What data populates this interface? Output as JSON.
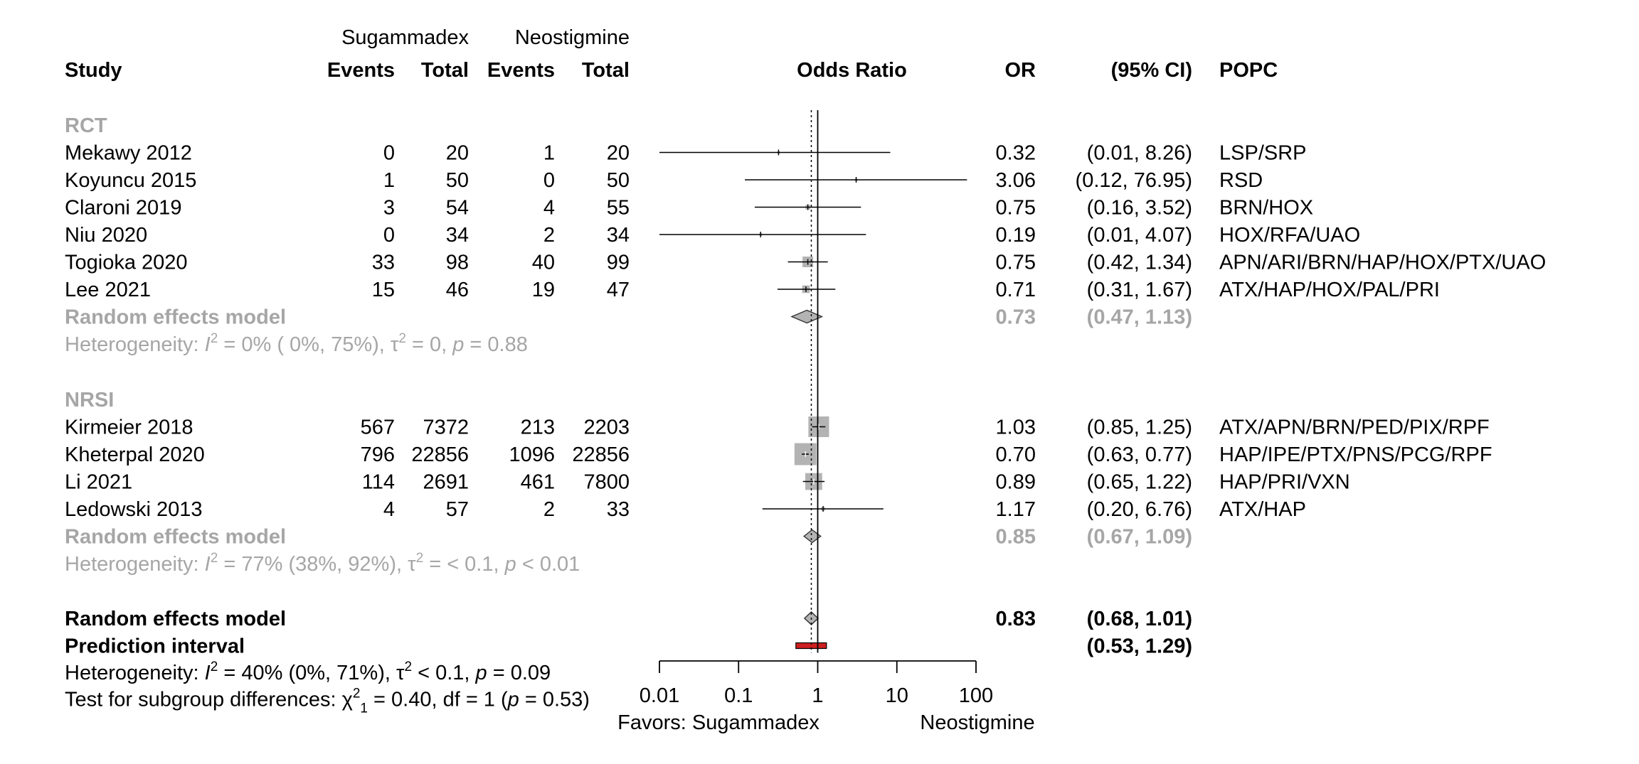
{
  "chart_data": {
    "type": "forest",
    "measure_label": "Odds Ratio",
    "scale": "log",
    "xlim": [
      0.01,
      100
    ],
    "xticks": [
      {
        "value": 0.01,
        "label": "0.01"
      },
      {
        "value": 0.1,
        "label": "0.1"
      },
      {
        "value": 1,
        "label": "1"
      },
      {
        "value": 10,
        "label": "10"
      },
      {
        "value": 100,
        "label": "100"
      }
    ],
    "favors_left": "Favors: Sugammadex",
    "favors_right": "Neostigmine",
    "overall_estimate": 0.83,
    "columns": {
      "group1": "Sugammadex",
      "group2": "Neostigmine",
      "study": "Study",
      "events": "Events",
      "total": "Total",
      "or": "OR",
      "ci": "(95% CI)",
      "popc": "POPC"
    },
    "subgroups": [
      {
        "name": "RCT",
        "studies": [
          {
            "study": "Mekawy 2012",
            "e1": "0",
            "n1": "20",
            "e2": "1",
            "n2": "20",
            "or": 0.32,
            "lo": 0.01,
            "hi": 8.26,
            "or_text": "0.32",
            "ci_text": "(0.01,  8.26)",
            "popc": "LSP/SRP",
            "weight": 0.5
          },
          {
            "study": "Koyuncu 2015",
            "e1": "1",
            "n1": "50",
            "e2": "0",
            "n2": "50",
            "or": 3.06,
            "lo": 0.12,
            "hi": 76.95,
            "or_text": "3.06",
            "ci_text": "(0.12, 76.95)",
            "popc": "RSD",
            "weight": 0.5
          },
          {
            "study": "Claroni 2019",
            "e1": "3",
            "n1": "54",
            "e2": "4",
            "n2": "55",
            "or": 0.75,
            "lo": 0.16,
            "hi": 3.52,
            "or_text": "0.75",
            "ci_text": "(0.16,  3.52)",
            "popc": "BRN/HOX",
            "weight": 1.5
          },
          {
            "study": "Niu 2020",
            "e1": "0",
            "n1": "34",
            "e2": "2",
            "n2": "34",
            "or": 0.19,
            "lo": 0.01,
            "hi": 4.07,
            "or_text": "0.19",
            "ci_text": "(0.01,  4.07)",
            "popc": "HOX/RFA/UAO",
            "weight": 0.5
          },
          {
            "study": "Togioka 2020",
            "e1": "33",
            "n1": "98",
            "e2": "40",
            "n2": "99",
            "or": 0.75,
            "lo": 0.42,
            "hi": 1.34,
            "or_text": "0.75",
            "ci_text": "(0.42,  1.34)",
            "popc": "APN/ARI/BRN/HAP/HOX/PTX/UAO",
            "weight": 8
          },
          {
            "study": "Lee 2021",
            "e1": "15",
            "n1": "46",
            "e2": "19",
            "n2": "47",
            "or": 0.71,
            "lo": 0.31,
            "hi": 1.67,
            "or_text": "0.71",
            "ci_text": "(0.31,  1.67)",
            "popc": "ATX/HAP/HOX/PAL/PRI",
            "weight": 4
          }
        ],
        "pooled": {
          "label": "Random effects model",
          "or": 0.73,
          "lo": 0.47,
          "hi": 1.13,
          "or_text": "0.73",
          "ci_text": "(0.47,  1.13)"
        },
        "het": {
          "prefix": "Heterogeneity: ",
          "i2": "I",
          "sq": "2",
          "rest1": " = 0% ( 0%, 75%), ",
          "tau": "τ",
          "rest2": " = 0, ",
          "p": "p",
          "rest3": " = 0.88"
        }
      },
      {
        "name": "NRSI",
        "studies": [
          {
            "study": "Kirmeier 2018",
            "e1": "567",
            "n1": "7372",
            "e2": "213",
            "n2": "2203",
            "or": 1.03,
            "lo": 0.85,
            "hi": 1.25,
            "or_text": "1.03",
            "ci_text": "(0.85,  1.25)",
            "popc": "ATX/APN/BRN/PED/PIX/RPF",
            "weight": 30
          },
          {
            "study": "Kheterpal 2020",
            "e1": "796",
            "n1": "22856",
            "e2": "1096",
            "n2": "22856",
            "or": 0.7,
            "lo": 0.63,
            "hi": 0.77,
            "or_text": "0.70",
            "ci_text": "(0.63,  0.77)",
            "popc": "HAP/IPE/PTX/PNS/PCG/RPF",
            "weight": 34
          },
          {
            "study": "Li 2021",
            "e1": "114",
            "n1": "2691",
            "e2": "461",
            "n2": "7800",
            "or": 0.89,
            "lo": 0.65,
            "hi": 1.22,
            "or_text": "0.89",
            "ci_text": "(0.65,  1.22)",
            "popc": "HAP/PRI/VXN",
            "weight": 20
          },
          {
            "study": "Ledowski 2013",
            "e1": "4",
            "n1": "57",
            "e2": "2",
            "n2": "33",
            "or": 1.17,
            "lo": 0.2,
            "hi": 6.76,
            "or_text": "1.17",
            "ci_text": "(0.20,  6.76)",
            "popc": "ATX/HAP",
            "weight": 1
          }
        ],
        "pooled": {
          "label": "Random effects model",
          "or": 0.85,
          "lo": 0.67,
          "hi": 1.09,
          "or_text": "0.85",
          "ci_text": "(0.67,  1.09)"
        },
        "het": {
          "prefix": "Heterogeneity: ",
          "i2": "I",
          "sq": "2",
          "rest1": " = 77% (38%, 92%), ",
          "tau": "τ",
          "rest2": " = < 0.1, ",
          "p": "p",
          "rest3": " < 0.01"
        }
      }
    ],
    "overall": {
      "label": "Random effects model",
      "or": 0.83,
      "lo": 0.68,
      "hi": 1.01,
      "or_text": "0.83",
      "ci_text": "(0.68,  1.01)"
    },
    "prediction": {
      "label": "Prediction interval",
      "lo": 0.53,
      "hi": 1.29,
      "ci_text": "(0.53,  1.29)"
    },
    "overall_het": {
      "prefix": "Heterogeneity: ",
      "i2": "I",
      "sq": "2",
      "rest1": " = 40% (0%, 71%), ",
      "tau": "τ",
      "rest2": " < 0.1, ",
      "p": "p",
      "rest3": " = 0.09"
    },
    "subgroup_test": {
      "prefix": "Test for subgroup differences: ",
      "chi": "χ",
      "sub": "1",
      "sq": "2",
      "rest1": " = 0.40, df = 1 (",
      "p": "p",
      "rest2": " = 0.53)"
    },
    "colors": {
      "text": "#000000",
      "subgroup_text": "#a6a6a6",
      "square": "#b3b3b3",
      "diamond": "#b3b3b3",
      "prediction": "#cc1f1f",
      "line": "#000000"
    }
  }
}
